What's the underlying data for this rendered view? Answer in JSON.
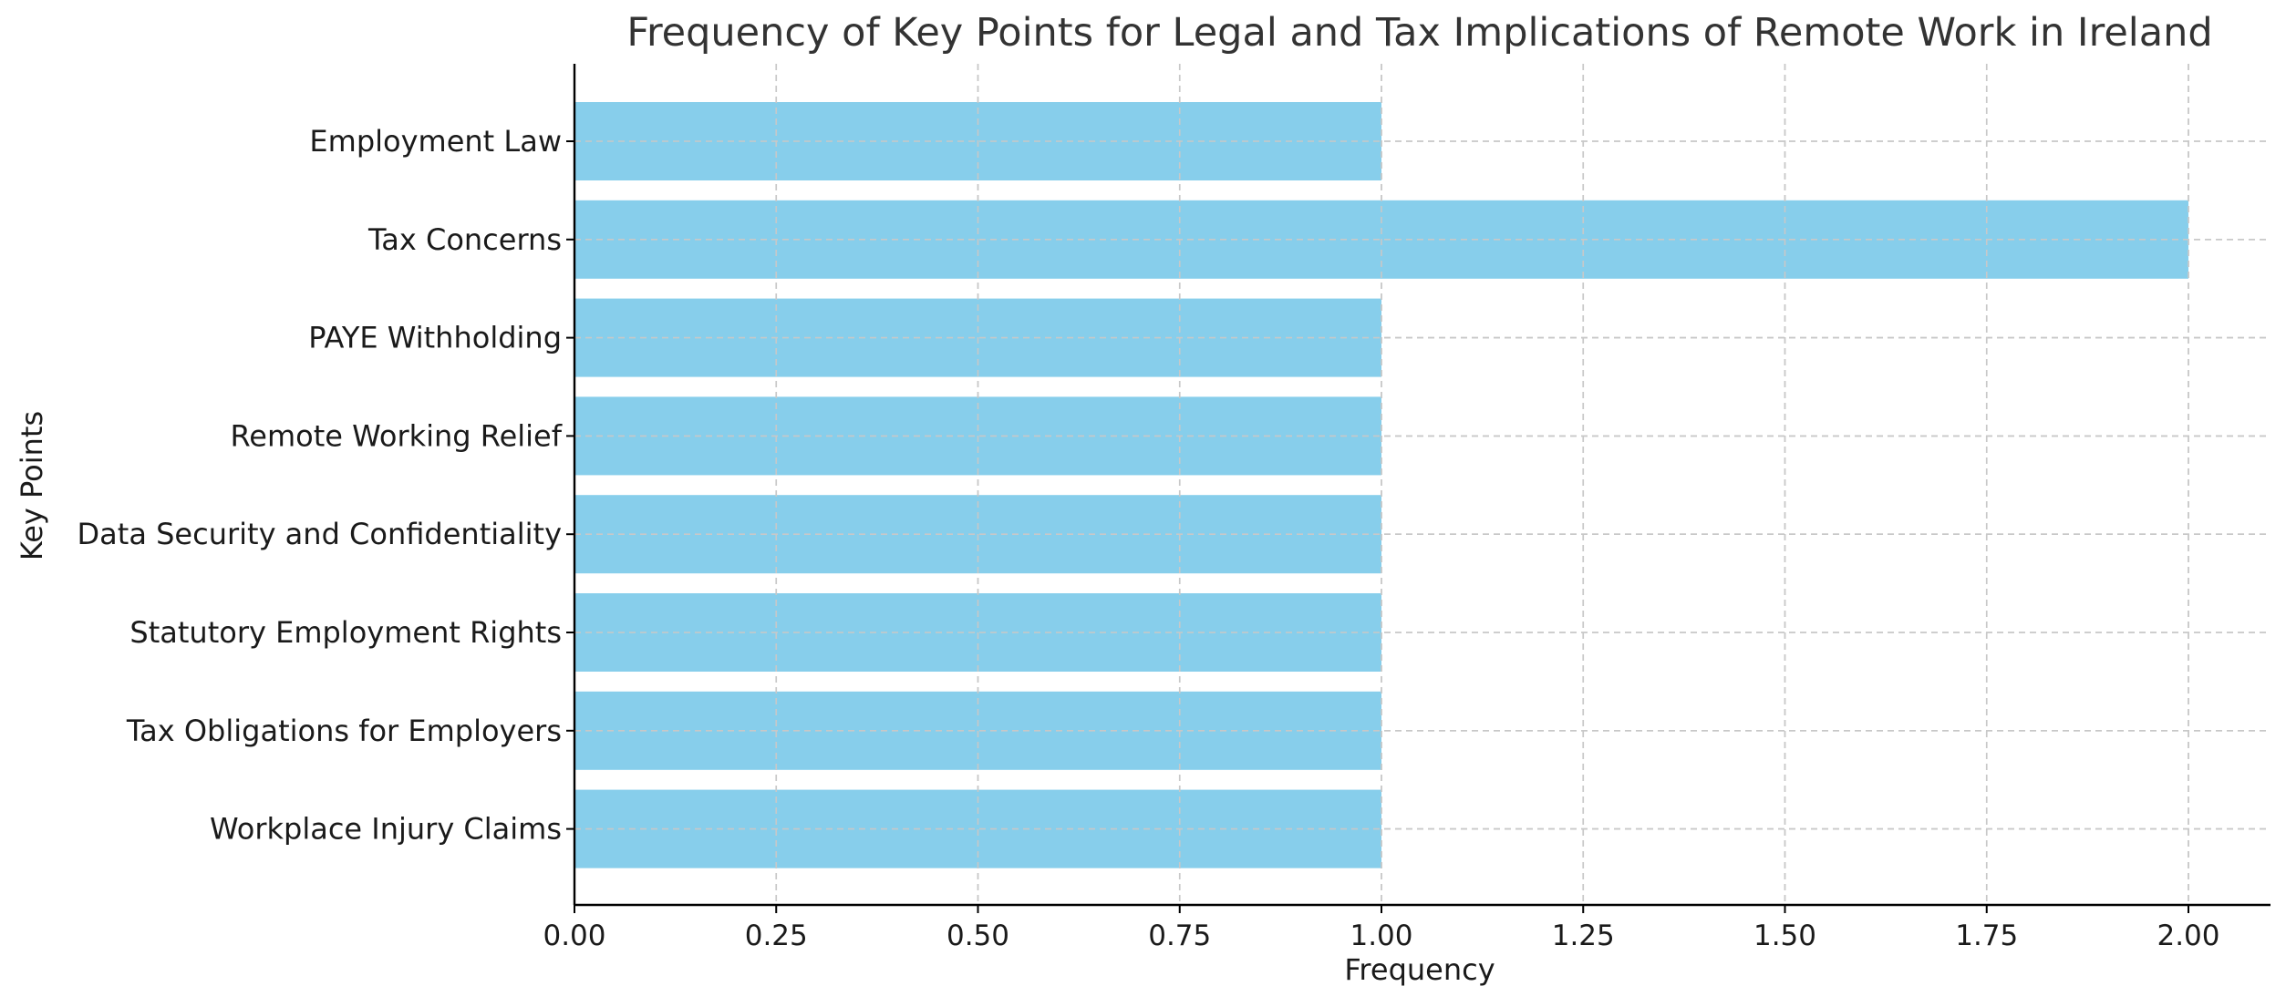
{
  "chart_data": {
    "type": "bar",
    "orientation": "horizontal",
    "title": "Frequency of Key Points for Legal and Tax Implications of Remote Work in Ireland",
    "xlabel": "Frequency",
    "ylabel": "Key Points",
    "categories": [
      "Employment Law",
      "Tax Concerns",
      "PAYE Withholding",
      "Remote Working Relief",
      "Data Security and Confidentiality",
      "Statutory Employment Rights",
      "Tax Obligations for Employers",
      "Workplace Injury Claims"
    ],
    "values": [
      1,
      2,
      1,
      1,
      1,
      1,
      1,
      1
    ],
    "xlim": [
      0,
      2.1
    ],
    "xticks": [
      "0.00",
      "0.25",
      "0.50",
      "0.75",
      "1.00",
      "1.25",
      "1.50",
      "1.75",
      "2.00"
    ],
    "grid": true,
    "legend": "none"
  },
  "colors": {
    "bar": "#87ceeb",
    "grid": "#c8c8c8",
    "axis": "#000000",
    "text": "#1a1a1a",
    "title": "#333333"
  }
}
